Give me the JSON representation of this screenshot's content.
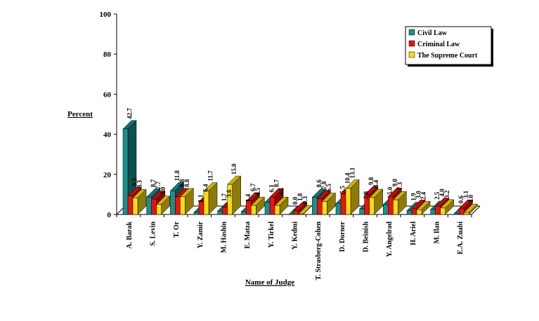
{
  "chart_data": {
    "type": "bar",
    "title": "",
    "xlabel": "Name of Judge",
    "ylabel": "Percent",
    "ylim": [
      0,
      100
    ],
    "yticks": [
      "0",
      "20",
      "40",
      "60",
      "80",
      "100"
    ],
    "grid": false,
    "legend_position": "top-right",
    "categories": [
      "A. Barak",
      "S. Levin",
      "T. Or",
      "Y. Zamir",
      "M. Hashin",
      "E. Matza",
      "Y. Tirkel",
      "Y. Kedmi",
      "T. Strasberg-Cohen",
      "D. Dorner",
      "D. Beinish",
      "Y. Angelrad",
      "H. Ariel",
      "M. Ilan",
      "E.A. Zuabi"
    ],
    "series": [
      {
        "name": "Civil Law",
        "color": "#1a8f8f",
        "values": [
          42.7,
          8.7,
          11.8,
          1.1,
          1.7,
          1.4,
          6.1,
          0.0,
          8.6,
          5.5,
          2.8,
          5.0,
          1.9,
          2.5,
          0.6
        ],
        "labels": [
          "42.7",
          "8.7",
          "11.8",
          "1.1",
          "1.7",
          "1.4",
          "6.1",
          "0.0",
          "8.6",
          "5.5",
          "2.8",
          "5.0",
          "1.9",
          "2.5",
          "0.6"
        ]
      },
      {
        "name": "Criminal Law",
        "color": "#ee1111",
        "values": [
          9.3,
          7.7,
          8.8,
          6.4,
          3.6,
          6.7,
          8.7,
          1.8,
          7.8,
          10.4,
          9.8,
          9.0,
          3.0,
          4.0,
          3.1
        ],
        "labels": [
          "9.3",
          "7.7",
          "8.8",
          "6.4",
          "3.6",
          "6.7",
          "8.7",
          "1.8",
          "7.8",
          "10.4",
          "9.8",
          "9.0",
          "3.0",
          "4.0",
          "3.1"
        ]
      },
      {
        "name": "The Supreme Court",
        "color": "#ffdd11",
        "values": [
          8.3,
          5.0,
          8.8,
          11.7,
          15.0,
          4.5,
          4.5,
          0.3,
          6.5,
          13.1,
          8.4,
          7.3,
          2.4,
          3.2,
          1.0
        ],
        "labels": [
          "8.3",
          "5.0",
          "8.8",
          "11.7",
          "15.0",
          "4.5",
          "4.5",
          "0.3",
          "6.5",
          "13.1",
          "8.4",
          "7.3",
          "2.4",
          "3.2",
          "1.0"
        ]
      }
    ]
  }
}
